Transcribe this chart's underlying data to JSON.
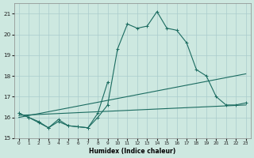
{
  "xlabel": "Humidex (Indice chaleur)",
  "bg_color": "#cde8e0",
  "grid_color": "#aacccc",
  "line_color": "#1a6b60",
  "x_full": [
    0,
    1,
    2,
    3,
    4,
    5,
    6,
    7,
    8,
    9,
    10,
    11,
    12,
    13,
    14,
    15,
    16,
    17,
    18,
    19,
    20,
    21,
    22,
    23
  ],
  "line1": [
    16.2,
    16.0,
    15.8,
    15.5,
    15.9,
    15.6,
    15.55,
    15.5,
    16.0,
    16.6,
    19.3,
    20.5,
    20.3,
    20.4,
    21.1,
    20.3,
    20.2,
    19.6,
    18.3,
    18.0,
    17.0,
    16.6,
    16.6,
    16.7
  ],
  "x_short": [
    0,
    1,
    2,
    3,
    4,
    5,
    6,
    7,
    8,
    9
  ],
  "line2": [
    16.2,
    16.0,
    15.75,
    15.5,
    15.8,
    15.6,
    15.55,
    15.5,
    16.2,
    17.7
  ],
  "trend1_x": [
    0,
    23
  ],
  "trend1_y": [
    16.1,
    16.6
  ],
  "trend2_x": [
    0,
    23
  ],
  "trend2_y": [
    16.0,
    18.1
  ],
  "ylim": [
    15.0,
    21.5
  ],
  "xlim": [
    -0.5,
    23.5
  ],
  "yticks": [
    15,
    16,
    17,
    18,
    19,
    20,
    21
  ],
  "xticks": [
    0,
    1,
    2,
    3,
    4,
    5,
    6,
    7,
    8,
    9,
    10,
    11,
    12,
    13,
    14,
    15,
    16,
    17,
    18,
    19,
    20,
    21,
    22,
    23
  ]
}
